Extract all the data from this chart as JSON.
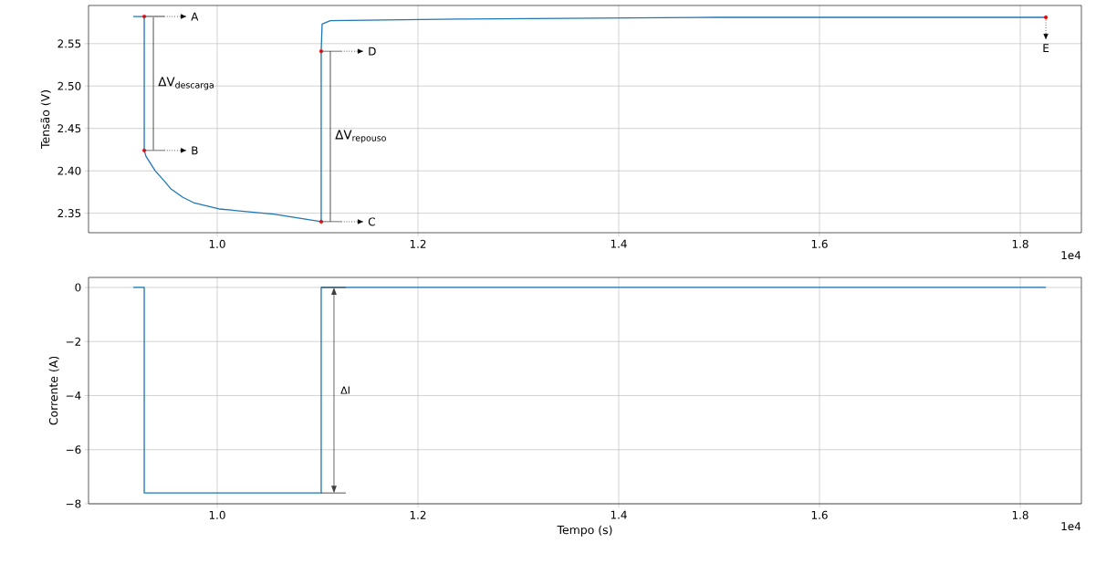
{
  "chart_data": [
    {
      "type": "line",
      "ylabel": "Tensão (V)",
      "grid": true,
      "xlim": [
        0.8718,
        1.8609
      ],
      "ylim": [
        2.327,
        2.595
      ],
      "xticks": [
        {
          "value": 1.0,
          "label": "1.0"
        },
        {
          "value": 1.2,
          "label": "1.2"
        },
        {
          "value": 1.4,
          "label": "1.4"
        },
        {
          "value": 1.6,
          "label": "1.6"
        },
        {
          "value": 1.8,
          "label": "1.8"
        }
      ],
      "yticks": [
        {
          "value": 2.35,
          "label": "2.35"
        },
        {
          "value": 2.4,
          "label": "2.40"
        },
        {
          "value": 2.45,
          "label": "2.45"
        },
        {
          "value": 2.5,
          "label": "2.50"
        },
        {
          "value": 2.55,
          "label": "2.55"
        }
      ],
      "series": [
        {
          "color": "#1f77b4",
          "x": [
            0.9164,
            0.9273,
            0.9273,
            0.9291,
            0.9382,
            0.9473,
            0.9536,
            0.9655,
            0.9773,
            1.0018,
            1.0564,
            1.1036,
            1.1036,
            1.1045,
            1.1127,
            1.24,
            1.5,
            1.8255
          ],
          "values": [
            2.582,
            2.582,
            2.424,
            2.417,
            2.4,
            2.388,
            2.379,
            2.369,
            2.362,
            2.355,
            2.349,
            2.34,
            2.541,
            2.573,
            2.577,
            2.579,
            2.581,
            2.581
          ]
        },
        {
          "type": "scatter",
          "color": "#ff0000",
          "marker": "circle",
          "x": [
            0.9273,
            0.9273,
            1.1036,
            1.1036,
            1.8255
          ],
          "values": [
            2.582,
            2.424,
            2.34,
            2.541,
            2.581
          ]
        }
      ],
      "annotations": [
        "A",
        "B",
        "C",
        "D",
        "E",
        "ΔV$_{descarga}$",
        "ΔV$_{repouso}$",
        "1e4"
      ]
    },
    {
      "type": "line",
      "xlabel": "Tempo (s)",
      "ylabel": "Corrente (A)",
      "grid": true,
      "xlim": [
        0.8718,
        1.8609
      ],
      "ylim": [
        -8,
        0.37
      ],
      "xticks": [
        {
          "value": 1.0,
          "label": "1.0"
        },
        {
          "value": 1.2,
          "label": "1.2"
        },
        {
          "value": 1.4,
          "label": "1.4"
        },
        {
          "value": 1.6,
          "label": "1.6"
        },
        {
          "value": 1.8,
          "label": "1.8"
        }
      ],
      "yticks": [
        {
          "value": -8,
          "label": "−8"
        },
        {
          "value": -6,
          "label": "−6"
        },
        {
          "value": -4,
          "label": "−4"
        },
        {
          "value": -2,
          "label": "−2"
        },
        {
          "value": 0,
          "label": "0"
        }
      ],
      "series": [
        {
          "color": "#1f77b4",
          "x": [
            0.9164,
            0.9273,
            0.9273,
            1.1036,
            1.1036,
            1.8255
          ],
          "values": [
            0,
            0,
            -7.6,
            -7.6,
            0,
            0
          ]
        }
      ],
      "annotations": [
        "ΔI",
        "1e4"
      ]
    }
  ]
}
